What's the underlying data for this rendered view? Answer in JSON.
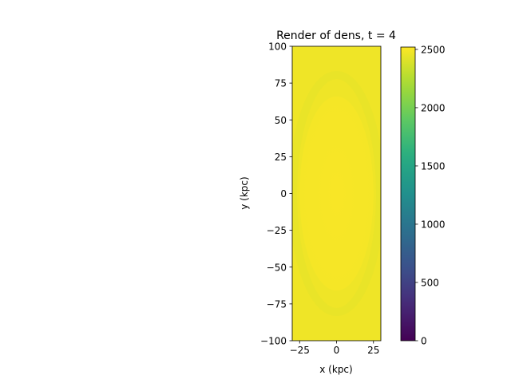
{
  "chart_data": {
    "type": "heatmap",
    "title": "Render of dens, t = 4",
    "xlabel": "x (kpc)",
    "ylabel": "y (kpc)",
    "xlim": [
      -30,
      30
    ],
    "ylim": [
      -100,
      100
    ],
    "x_ticks": [
      -25,
      0,
      25
    ],
    "x_tick_labels": [
      "−25",
      "0",
      "25"
    ],
    "y_ticks": [
      -100,
      -75,
      -50,
      -25,
      0,
      25,
      50,
      75,
      100
    ],
    "y_tick_labels": [
      "−100",
      "−75",
      "−50",
      "−25",
      "0",
      "25",
      "50",
      "75",
      "100"
    ],
    "colormap": "viridis",
    "colorbar": {
      "vmin": 0,
      "vmax": 2520,
      "ticks": [
        0,
        500,
        1000,
        1500,
        2000,
        2500
      ],
      "tick_labels": [
        "0",
        "500",
        "1000",
        "1500",
        "2000",
        "2500"
      ]
    },
    "field": {
      "background_value": 2470,
      "inner_ellipse": {
        "center": [
          0,
          0
        ],
        "semi_axes": [
          25,
          66
        ],
        "value": 2500
      },
      "shell_value": 2430
    },
    "grid": false
  }
}
